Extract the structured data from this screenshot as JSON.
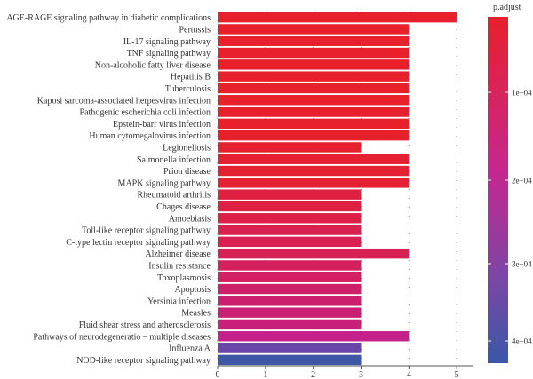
{
  "chart_data": {
    "type": "bar",
    "orientation": "horizontal",
    "title": "",
    "xlabel": "",
    "ylabel": "",
    "xlim": [
      0,
      5.35
    ],
    "xticks": [
      0,
      1,
      2,
      3,
      4,
      5
    ],
    "grid": true,
    "categories": [
      "AGE-RAGE signaling pathway in diabetic complications",
      "Pertussis",
      "IL-17 signaling pathway",
      "TNF signaling pathway",
      "Non-alcoholic fatty liver disease",
      "Hepatitis B",
      "Tuberculosis",
      "Kaposi sarcoma-associated herpesvirus infection",
      "Pathogenic escherichia coli infection",
      "Epstein-barr virus infection",
      "Human cytomegalovirus infection",
      "Legionellosis",
      "Salmonella infection",
      "Prion disease",
      "MAPK signaling pathway",
      "Rheumatoid arthritis",
      "Chages disease",
      "Amoebiasis",
      "Toll-like receptor signaling pathway",
      "C-type lectin receptor signaling pathway",
      "Alzheimer disease",
      "Insulin resistance",
      "Toxoplasmosis",
      "Apoptosis",
      "Yersinia infection",
      "Measles",
      "Fluid shear stress and atherosclerosis",
      "Pathways of neurodegeneratio – multiple diseases",
      "Influenza A",
      "NOD-like receptor signaling pathway"
    ],
    "values": [
      5,
      4,
      4,
      4,
      4,
      4,
      4,
      4,
      4,
      4,
      4,
      3,
      4,
      4,
      4,
      3,
      3,
      3,
      3,
      3,
      4,
      3,
      3,
      3,
      3,
      3,
      3,
      4,
      3,
      3
    ],
    "colors": [
      "#e8202c",
      "#e8202c",
      "#e8202c",
      "#e8202c",
      "#e8202c",
      "#e8202c",
      "#e8202c",
      "#e8202c",
      "#e8202c",
      "#e8202c",
      "#e8202c",
      "#e6202e",
      "#e42032",
      "#e42032",
      "#e42032",
      "#e02040",
      "#de2044",
      "#dc2048",
      "#da204e",
      "#d82052",
      "#d62056",
      "#d4205c",
      "#d22062",
      "#ce2068",
      "#cc206e",
      "#ca2074",
      "#c82078",
      "#c4228a",
      "#6a46a8",
      "#3d56a6"
    ],
    "legend": {
      "title": "p.adjust",
      "ticks": [
        "1e−04",
        "2e−04",
        "3e−04",
        "4e−04"
      ],
      "gradient": [
        "#e8202c",
        "#c42890",
        "#7c46a4",
        "#3a58a8"
      ],
      "placement": "right"
    }
  }
}
